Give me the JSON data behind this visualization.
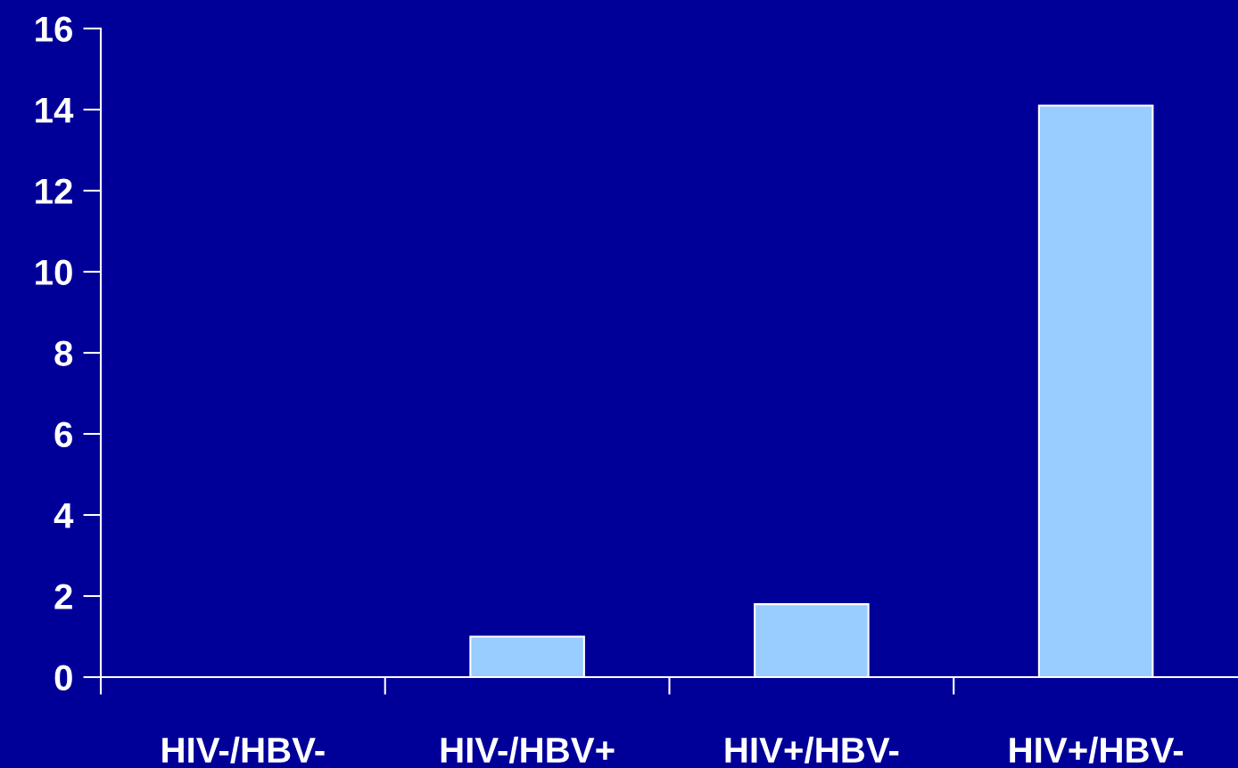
{
  "chart_data": {
    "type": "bar",
    "categories": [
      "HIV-/HBV-",
      "HIV-/HBV+",
      "HIV+/HBV-",
      "HIV+/HBV-"
    ],
    "values": [
      0,
      1.0,
      1.8,
      14.1
    ],
    "color": "#99ccff",
    "ylim": [
      0,
      16
    ],
    "yticks": [
      0,
      2,
      4,
      6,
      8,
      10,
      12,
      14,
      16
    ],
    "grid": false,
    "legend": false
  }
}
